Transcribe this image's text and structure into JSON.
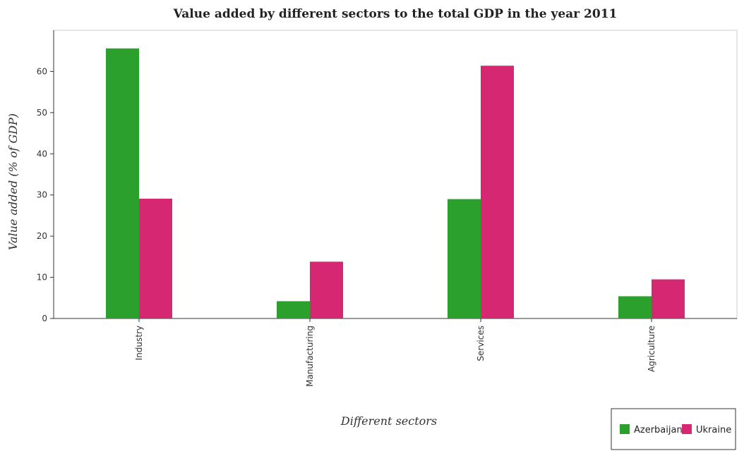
{
  "chart_data": {
    "type": "bar",
    "title": "Value added by different sectors to the total GDP in the year 2011",
    "xlabel": "Different sectors",
    "ylabel": "Value added (% of GDP)",
    "categories": [
      "Industry",
      "Manufacturing",
      "Services",
      "Agriculture"
    ],
    "series": [
      {
        "name": "Azerbaijan",
        "color": "#2ca02c",
        "values": [
          65.6,
          4.2,
          29.0,
          5.4
        ]
      },
      {
        "name": "Ukraine",
        "color": "#d62773",
        "values": [
          29.1,
          13.8,
          61.4,
          9.5
        ]
      }
    ],
    "ylim": [
      0,
      70
    ],
    "yticks": [
      0,
      10,
      20,
      30,
      40,
      50,
      60
    ],
    "grid": false,
    "legend_position": "bottom-right"
  }
}
